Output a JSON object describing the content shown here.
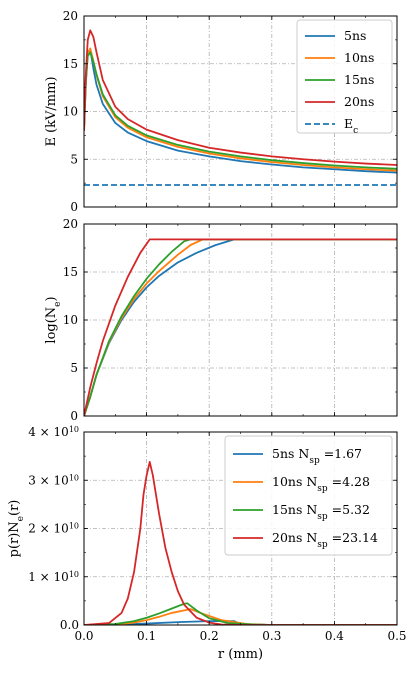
{
  "chart_data": [
    {
      "type": "line",
      "ylabel": "E (kV/mm)",
      "xlabel": "",
      "xlim": [
        0,
        0.5
      ],
      "ylim": [
        0,
        20
      ],
      "xticks": [
        "",
        "",
        "",
        "",
        "",
        ""
      ],
      "yticks": [
        "0",
        "5",
        "10",
        "15",
        "20"
      ],
      "grid": true,
      "legend_position": "top-right",
      "series": [
        {
          "name": "5ns",
          "color": "#1f77b4",
          "style": "solid",
          "x": [
            0,
            0.003,
            0.006,
            0.01,
            0.015,
            0.02,
            0.03,
            0.05,
            0.07,
            0.1,
            0.15,
            0.2,
            0.25,
            0.3,
            0.35,
            0.4,
            0.45,
            0.5
          ],
          "y": [
            8.0,
            13.0,
            16.2,
            16.5,
            14.5,
            12.8,
            10.8,
            8.8,
            7.8,
            6.9,
            5.9,
            5.3,
            4.8,
            4.45,
            4.15,
            3.95,
            3.75,
            3.6
          ]
        },
        {
          "name": "10ns",
          "color": "#ff7f0e",
          "style": "solid",
          "x": [
            0,
            0.003,
            0.006,
            0.01,
            0.015,
            0.02,
            0.03,
            0.05,
            0.07,
            0.1,
            0.15,
            0.2,
            0.25,
            0.3,
            0.35,
            0.4,
            0.45,
            0.5
          ],
          "y": [
            8.0,
            13.5,
            16.0,
            16.6,
            15.3,
            13.8,
            11.6,
            9.4,
            8.3,
            7.3,
            6.3,
            5.6,
            5.1,
            4.7,
            4.4,
            4.15,
            3.95,
            3.8
          ]
        },
        {
          "name": "15ns",
          "color": "#2ca02c",
          "style": "solid",
          "x": [
            0,
            0.003,
            0.006,
            0.01,
            0.015,
            0.02,
            0.03,
            0.05,
            0.07,
            0.1,
            0.15,
            0.2,
            0.25,
            0.3,
            0.35,
            0.4,
            0.45,
            0.5
          ],
          "y": [
            8.0,
            13.2,
            15.8,
            16.2,
            15.2,
            13.9,
            11.8,
            9.6,
            8.5,
            7.5,
            6.5,
            5.8,
            5.3,
            4.9,
            4.6,
            4.35,
            4.15,
            4.0
          ]
        },
        {
          "name": "20ns",
          "color": "#d62728",
          "style": "solid",
          "x": [
            0,
            0.003,
            0.006,
            0.01,
            0.015,
            0.02,
            0.03,
            0.05,
            0.07,
            0.1,
            0.15,
            0.2,
            0.25,
            0.3,
            0.35,
            0.4,
            0.45,
            0.5
          ],
          "y": [
            8.0,
            14.0,
            17.5,
            18.5,
            17.8,
            16.2,
            13.3,
            10.5,
            9.2,
            8.1,
            7.0,
            6.2,
            5.7,
            5.3,
            5.0,
            4.75,
            4.55,
            4.4
          ]
        },
        {
          "name": "E_c",
          "color": "#1f77b4",
          "style": "dashed",
          "x": [
            0,
            0.5
          ],
          "y": [
            2.3,
            2.3
          ]
        }
      ]
    },
    {
      "type": "line",
      "ylabel": "log(N_e)",
      "xlabel": "",
      "xlim": [
        0,
        0.5
      ],
      "ylim": [
        0,
        20
      ],
      "xticks": [
        "",
        "",
        "",
        "",
        "",
        ""
      ],
      "yticks": [
        "0",
        "5",
        "10",
        "15",
        "20"
      ],
      "grid": true,
      "series": [
        {
          "name": "5ns",
          "color": "#1f77b4",
          "x": [
            0,
            0.01,
            0.02,
            0.04,
            0.06,
            0.08,
            0.1,
            0.12,
            0.15,
            0.18,
            0.21,
            0.24,
            0.25,
            0.5
          ],
          "y": [
            0,
            2.0,
            4.3,
            7.6,
            10.0,
            11.9,
            13.4,
            14.6,
            16.0,
            17.0,
            17.8,
            18.4,
            18.4,
            18.4
          ]
        },
        {
          "name": "10ns",
          "color": "#ff7f0e",
          "x": [
            0,
            0.01,
            0.02,
            0.04,
            0.06,
            0.08,
            0.1,
            0.12,
            0.15,
            0.17,
            0.19,
            0.5
          ],
          "y": [
            0,
            2.0,
            4.3,
            7.7,
            10.2,
            12.2,
            13.8,
            15.1,
            16.8,
            17.8,
            18.4,
            18.4
          ]
        },
        {
          "name": "15ns",
          "color": "#2ca02c",
          "x": [
            0,
            0.01,
            0.02,
            0.04,
            0.06,
            0.08,
            0.1,
            0.12,
            0.14,
            0.16,
            0.17,
            0.5
          ],
          "y": [
            0,
            2.0,
            4.3,
            7.8,
            10.4,
            12.5,
            14.3,
            15.8,
            17.1,
            18.2,
            18.4,
            18.4
          ]
        },
        {
          "name": "20ns",
          "color": "#d62728",
          "x": [
            0,
            0.005,
            0.01,
            0.02,
            0.03,
            0.05,
            0.07,
            0.09,
            0.105,
            0.5
          ],
          "y": [
            0,
            1.5,
            3.0,
            5.5,
            7.8,
            11.5,
            14.5,
            17.0,
            18.4,
            18.4
          ]
        }
      ]
    },
    {
      "type": "line",
      "ylabel": "p(r)N_e(r)",
      "xlabel": "r (mm)",
      "xlim": [
        0,
        0.5
      ],
      "ylim": [
        0,
        40000000000.0
      ],
      "xticks": [
        "0.0",
        "0.1",
        "0.2",
        "0.3",
        "0.4",
        "0.5"
      ],
      "ytick_values": [
        0,
        10000000000.0,
        20000000000.0,
        30000000000.0,
        40000000000.0
      ],
      "ytick_mantissa": [
        "0",
        "1",
        "2",
        "3",
        "4"
      ],
      "ytick_zero": "0.0",
      "ytick_times": "×",
      "ytick_base": "10",
      "ytick_exponent": "10",
      "grid": true,
      "legend_position": "top-right",
      "series": [
        {
          "name": "5ns",
          "legend_extra": "N_sp =1.67",
          "color": "#1f77b4",
          "x": [
            0,
            0.05,
            0.1,
            0.15,
            0.2,
            0.24,
            0.25,
            0.3,
            0.5
          ],
          "y": [
            0,
            100000000.0,
            300000000.0,
            600000000.0,
            800000000.0,
            800000000.0,
            200000000.0,
            0,
            0
          ]
        },
        {
          "name": "10ns",
          "legend_extra": "N_sp =4.28",
          "color": "#ff7f0e",
          "x": [
            0,
            0.05,
            0.08,
            0.1,
            0.12,
            0.14,
            0.17,
            0.19,
            0.22,
            0.26,
            0.3,
            0.5
          ],
          "y": [
            0,
            100000000.0,
            500000000.0,
            1000000000.0,
            1700000000.0,
            2500000000.0,
            3300000000.0,
            2300000000.0,
            1000000000.0,
            200000000.0,
            0,
            0
          ]
        },
        {
          "name": "15ns",
          "legend_extra": "N_sp =5.32",
          "color": "#2ca02c",
          "x": [
            0,
            0.05,
            0.08,
            0.1,
            0.12,
            0.14,
            0.16,
            0.165,
            0.18,
            0.2,
            0.23,
            0.27,
            0.3,
            0.5
          ],
          "y": [
            0,
            200000000.0,
            800000000.0,
            1500000000.0,
            2400000000.0,
            3400000000.0,
            4400000000.0,
            4500000000.0,
            3000000000.0,
            1400000000.0,
            400000000.0,
            100000000.0,
            0,
            0
          ]
        },
        {
          "name": "20ns",
          "legend_extra": "N_sp =23.14",
          "color": "#d62728",
          "x": [
            0,
            0.04,
            0.06,
            0.07,
            0.08,
            0.09,
            0.095,
            0.1,
            0.105,
            0.11,
            0.115,
            0.12,
            0.13,
            0.14,
            0.15,
            0.16,
            0.18,
            0.2,
            0.22,
            0.25,
            0.3,
            0.5
          ],
          "y": [
            0,
            400000000.0,
            2500000000.0,
            5500000000.0,
            11000000000.0,
            20000000000.0,
            27000000000.0,
            31000000000.0,
            33800000000.0,
            31000000000.0,
            27000000000.0,
            23000000000.0,
            16000000000.0,
            11000000000.0,
            7000000000.0,
            4200000000.0,
            1500000000.0,
            500000000.0,
            100000000.0,
            0,
            0,
            0
          ]
        }
      ]
    }
  ]
}
